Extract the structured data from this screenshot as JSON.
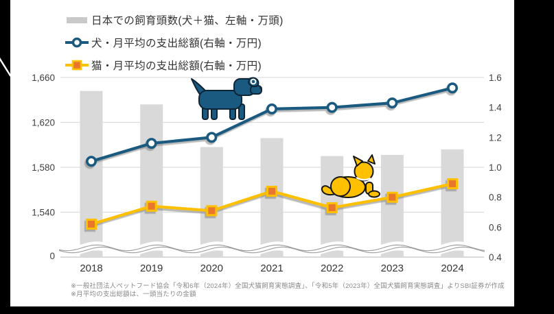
{
  "palette": {
    "background": "#000000",
    "card": "#ffffff",
    "bar": "#d9d9d9",
    "bar_legend": "#c9c9c9",
    "dog_blue": "#1a5a80",
    "cat_yellow": "#ffc000",
    "cat_marker_orange": "#e8762d",
    "grid": "#dcdcdc",
    "axis_line": "#c2c2c2",
    "wave_gray": "#9b9b9b",
    "tick_text": "#404040",
    "footnote_text": "#888888"
  },
  "legend": {
    "items": [
      {
        "id": "population",
        "type": "bar",
        "label": "日本での飼育頭数(犬＋猫、左軸・万頭)"
      },
      {
        "id": "dog",
        "type": "line-circle",
        "label": "犬・月平均の支出総額(右軸・万円)"
      },
      {
        "id": "cat",
        "type": "line-square",
        "label": "猫・月平均の支出総額(右軸・万円)"
      }
    ]
  },
  "chart_data": {
    "type": "combo",
    "categories": [
      "2018",
      "2019",
      "2020",
      "2021",
      "2022",
      "2023",
      "2024"
    ],
    "series": [
      {
        "name": "日本での飼育頭数(犬＋猫、左軸・万頭)",
        "type": "bar",
        "axis": "left",
        "color": "#d9d9d9",
        "values": [
          1648,
          1636,
          1598,
          1606,
          1590,
          1591,
          1596
        ]
      },
      {
        "name": "犬・月平均の支出総額(右軸・万円)",
        "type": "line",
        "axis": "right",
        "color": "#1a5a80",
        "marker": "circle",
        "values": [
          1.04,
          1.16,
          1.2,
          1.39,
          1.4,
          1.43,
          1.53
        ]
      },
      {
        "name": "猫・月平均の支出総額(右軸・万円)",
        "type": "line",
        "axis": "right",
        "color": "#ffc000",
        "marker": "square",
        "marker_fill": "#e8762d",
        "values": [
          0.62,
          0.74,
          0.71,
          0.84,
          0.73,
          0.8,
          0.89
        ]
      }
    ],
    "left_axis": {
      "tick_labels": [
        "1,660",
        "1,620",
        "1,580",
        "1,540",
        "0"
      ],
      "tick_values": [
        1660,
        1620,
        1580,
        1540,
        0
      ],
      "broken_axis": true
    },
    "right_axis": {
      "tick_labels": [
        "1.6",
        "1.4",
        "1.2",
        "1.0",
        "0.8",
        "0.6",
        "0.4"
      ],
      "tick_values": [
        1.6,
        1.4,
        1.2,
        1.0,
        0.8,
        0.6,
        0.4
      ],
      "range": [
        0.4,
        1.6
      ]
    },
    "grid": true,
    "legend_position": "top-left"
  },
  "footnotes": [
    "※一般社団法人ペットフード協会「令和6年（2024年）全国犬猫飼育実態調査」、「令和5年（2023年）全国犬猫飼育実態調査」よりSBI証券が作成",
    "※月平均の支出総額は、一頭当たりの金額"
  ]
}
